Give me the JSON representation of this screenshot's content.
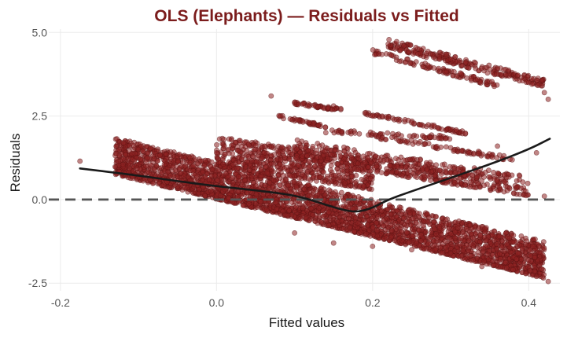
{
  "chart_data": {
    "type": "scatter",
    "title": "OLS (Elephants) — Residuals vs Fitted",
    "xlabel": "Fitted values",
    "ylabel": "Residuals",
    "xlim": [
      -0.215,
      0.44
    ],
    "ylim": [
      -2.73,
      5.1
    ],
    "x_ticks": [
      -0.2,
      0.0,
      0.2,
      0.4
    ],
    "x_tick_labels": [
      "-0.2",
      "0.0",
      "0.2",
      "0.4"
    ],
    "y_ticks": [
      -2.5,
      0.0,
      2.5,
      5.0
    ],
    "y_tick_labels": [
      "-2.5",
      "0.0",
      "2.5",
      "5.0"
    ],
    "reference_line": {
      "y": 0.0,
      "style": "dashed"
    },
    "smoother": {
      "x": [
        -0.175,
        -0.1,
        -0.05,
        0.0,
        0.05,
        0.1,
        0.13,
        0.16,
        0.18,
        0.2,
        0.22,
        0.25,
        0.3,
        0.35,
        0.4,
        0.427
      ],
      "y": [
        0.93,
        0.72,
        0.55,
        0.4,
        0.28,
        0.13,
        -0.08,
        -0.3,
        -0.38,
        -0.25,
        0.0,
        0.25,
        0.65,
        1.05,
        1.5,
        1.82
      ]
    },
    "points": [
      [
        -0.175,
        1.15
      ],
      [
        -0.13,
        0.98
      ],
      [
        -0.12,
        1.05
      ],
      [
        -0.09,
        1.12
      ],
      [
        -0.08,
        0.92
      ],
      [
        -0.06,
        1.02
      ],
      [
        -0.04,
        1.0
      ],
      [
        -0.02,
        1.15
      ],
      [
        0.0,
        1.4
      ],
      [
        0.01,
        1.6
      ],
      [
        0.03,
        1.7
      ],
      [
        0.05,
        1.5
      ],
      [
        0.07,
        1.6
      ],
      [
        0.09,
        1.5
      ],
      [
        0.11,
        1.3
      ],
      [
        0.07,
        3.1
      ],
      [
        0.1,
        2.9
      ],
      [
        0.15,
        2.8
      ],
      [
        0.22,
        4.65
      ],
      [
        0.24,
        4.6
      ],
      [
        0.26,
        4.5
      ],
      [
        0.3,
        4.2
      ],
      [
        0.35,
        3.9
      ],
      [
        0.4,
        3.5
      ],
      [
        0.42,
        3.2
      ],
      [
        0.425,
        3.0
      ],
      [
        0.2,
        2.5
      ],
      [
        0.25,
        2.3
      ],
      [
        0.3,
        2.1
      ],
      [
        0.36,
        1.6
      ],
      [
        0.41,
        1.4
      ],
      [
        0.42,
        0.1
      ],
      [
        0.1,
        -1.0
      ],
      [
        0.15,
        -1.3
      ],
      [
        0.2,
        -1.4
      ],
      [
        0.25,
        -1.5
      ],
      [
        0.3,
        -1.6
      ],
      [
        0.34,
        -2.0
      ],
      [
        0.38,
        -2.1
      ],
      [
        0.41,
        -2.3
      ],
      [
        0.425,
        -2.45
      ],
      [
        0.405,
        -1.4
      ]
    ],
    "point_bands": [
      {
        "x": [
          -0.13,
          0.42
        ],
        "y0": [
          0.75,
          -2.35
        ],
        "spread": 1.1,
        "count": 3200
      },
      {
        "x": [
          0.0,
          0.2
        ],
        "y0": [
          1.0,
          0.3
        ],
        "spread": 0.9,
        "count": 600
      },
      {
        "x": [
          0.1,
          0.4
        ],
        "y0": [
          1.2,
          0.1
        ],
        "spread": 0.6,
        "count": 500
      },
      {
        "x": [
          0.22,
          0.42
        ],
        "y0": [
          4.55,
          3.35
        ],
        "spread": 0.25,
        "count": 220
      },
      {
        "x": [
          0.2,
          0.36
        ],
        "y0": [
          4.35,
          3.35
        ],
        "spread": 0.15,
        "count": 100
      },
      {
        "x": [
          0.1,
          0.16
        ],
        "y0": [
          2.85,
          2.65
        ],
        "spread": 0.08,
        "count": 50
      },
      {
        "x": [
          0.08,
          0.14
        ],
        "y0": [
          2.45,
          2.15
        ],
        "spread": 0.08,
        "count": 40
      },
      {
        "x": [
          0.19,
          0.32
        ],
        "y0": [
          2.55,
          1.95
        ],
        "spread": 0.08,
        "count": 70
      },
      {
        "x": [
          0.14,
          0.3
        ],
        "y0": [
          2.0,
          1.8
        ],
        "spread": 0.1,
        "count": 60
      },
      {
        "x": [
          0.2,
          0.38
        ],
        "y0": [
          1.85,
          1.15
        ],
        "spread": 0.12,
        "count": 80
      },
      {
        "x": [
          0.22,
          0.36
        ],
        "y0": [
          1.0,
          0.55
        ],
        "spread": 0.1,
        "count": 50
      }
    ],
    "colors": {
      "title": "#7b1c1c",
      "points_fill": "#8e2323",
      "points_stroke": "#5a1212",
      "smoother": "#1a1a1a",
      "reference": "#555555",
      "grid": "#ebebeb"
    }
  }
}
